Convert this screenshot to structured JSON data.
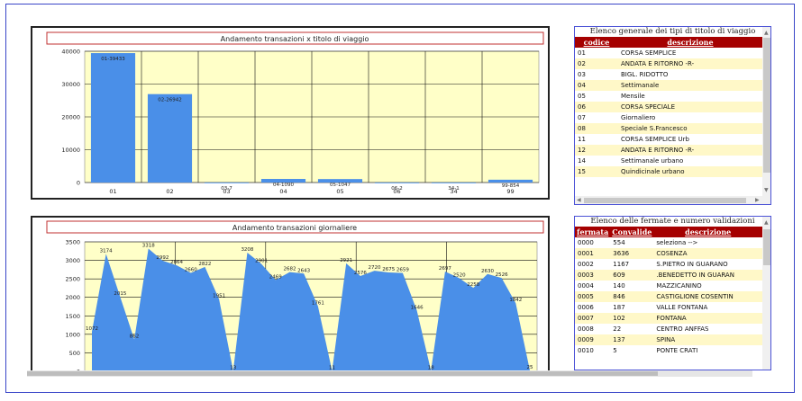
{
  "colors": {
    "bar": "#4a8fe8",
    "plot_bg": "#ffffc8",
    "header": "#a50000",
    "alt_row": "#fff8c8",
    "title_border": "#c03030"
  },
  "chart1": {
    "title": "Andamento transazioni x titolo di viaggio",
    "chart_data": {
      "type": "bar",
      "title": "Andamento transazioni x titolo di viaggio",
      "categories": [
        "01",
        "02",
        "03",
        "04",
        "05",
        "06",
        "34",
        "99"
      ],
      "values": [
        39433,
        26942,
        7,
        1090,
        1047,
        2,
        1,
        854
      ],
      "data_labels": [
        "01-39433",
        "02-26942",
        "03-7",
        "04-1090",
        "05-1047",
        "06-2",
        "34-1",
        "99-854"
      ],
      "ylim": [
        0,
        40000
      ],
      "yticks": [
        0,
        10000,
        20000,
        30000,
        40000
      ],
      "grid": true
    }
  },
  "chart2": {
    "title": "Andamento transazioni  giornaliere",
    "chart_data": {
      "type": "area",
      "title": "Andamento transazioni  giornaliere",
      "values": [
        1072,
        3174,
        2015,
        862,
        3318,
        2992,
        2864,
        2660,
        2822,
        1951,
        13,
        3208,
        2901,
        2469,
        2682,
        2643,
        1761,
        11,
        2921,
        2576,
        2720,
        2675,
        2659,
        1646,
        18,
        2697,
        2520,
        2258,
        2630,
        2526,
        1842,
        25
      ],
      "ylim": [
        0,
        3500
      ],
      "yticks": [
        0,
        500,
        1000,
        1500,
        2000,
        2500,
        3000,
        3500
      ],
      "grid": true
    }
  },
  "table1": {
    "title": "Elenco generale dei tipi di titolo di viaggio",
    "headers": [
      "codice",
      "descrizione"
    ],
    "rows": [
      [
        "01",
        "CORSA SEMPLICE"
      ],
      [
        "02",
        "ANDATA E RITORNO -R-"
      ],
      [
        "03",
        "BIGL. RIDOTTO"
      ],
      [
        "04",
        "Settimanale"
      ],
      [
        "05",
        "Mensile"
      ],
      [
        "06",
        "CORSA SPECIALE"
      ],
      [
        "07",
        "Giornaliero"
      ],
      [
        "08",
        "Speciale S.Francesco"
      ],
      [
        "11",
        "CORSA SEMPLICE Urb"
      ],
      [
        "12",
        "ANDATA E RITORNO -R-"
      ],
      [
        "14",
        "Settimanale urbano"
      ],
      [
        "15",
        "Quindicinale urbano"
      ]
    ]
  },
  "table2": {
    "title": "Elenco delle fermate e numero validazioni",
    "headers": [
      "fermata",
      "Convalide",
      "descrizione"
    ],
    "rows": [
      [
        "0000",
        "554",
        "seleziona -->"
      ],
      [
        "0001",
        "3636",
        "COSENZA"
      ],
      [
        "0002",
        "1167",
        "S.PIETRO IN GUARANO"
      ],
      [
        "0003",
        "609",
        ".BENEDETTO IN GUARAN"
      ],
      [
        "0004",
        "140",
        "MAZZICANINO"
      ],
      [
        "0005",
        "846",
        "CASTIGLIONE COSENTIN"
      ],
      [
        "0006",
        "187",
        "VALLE FONTANA"
      ],
      [
        "0007",
        "102",
        "FONTANA"
      ],
      [
        "0008",
        "22",
        "CENTRO ANFFAS"
      ],
      [
        "0009",
        "137",
        "SPINA"
      ],
      [
        "0010",
        "5",
        "PONTE CRATI"
      ]
    ]
  }
}
